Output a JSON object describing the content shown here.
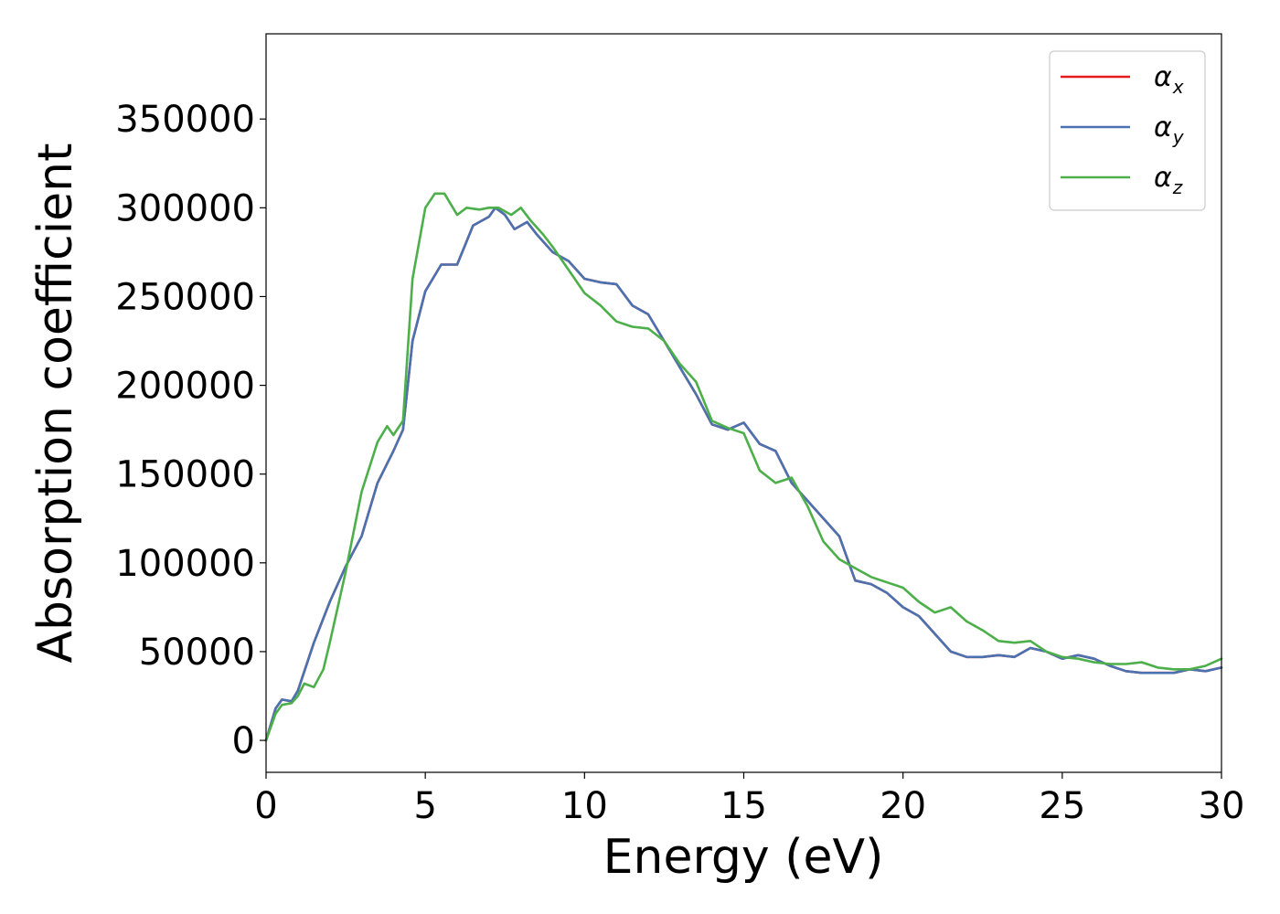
{
  "chart_data": {
    "type": "line",
    "title": "",
    "xlabel": "Energy (eV)",
    "ylabel": "Absorption coefficient",
    "xlim": [
      0,
      30
    ],
    "ylim": [
      -18000,
      398000
    ],
    "xticks": [
      0,
      5,
      10,
      15,
      20,
      25,
      30
    ],
    "yticks": [
      0,
      50000,
      100000,
      150000,
      200000,
      250000,
      300000,
      350000
    ],
    "grid": false,
    "legend_position": "top-right",
    "series": [
      {
        "name": "αx",
        "base": "α",
        "sub": "x",
        "color": "#e41a1c",
        "x": [
          0,
          0.3,
          0.5,
          0.8,
          1.0,
          1.5,
          2.0,
          2.5,
          3.0,
          3.5,
          4.0,
          4.3,
          4.6,
          5.0,
          5.5,
          6.0,
          6.5,
          7.0,
          7.2,
          7.5,
          7.8,
          8.2,
          8.5,
          9.0,
          9.5,
          10.0,
          10.5,
          11.0,
          11.5,
          12.0,
          12.5,
          13.0,
          13.5,
          14.0,
          14.5,
          15.0,
          15.5,
          16.0,
          16.5,
          17.0,
          17.5,
          18.0,
          18.5,
          19.0,
          19.5,
          20.0,
          20.5,
          21.0,
          21.5,
          22.0,
          22.5,
          23.0,
          23.5,
          24.0,
          24.5,
          25.0,
          25.5,
          26.0,
          26.5,
          27.0,
          27.5,
          28.0,
          28.5,
          29.0,
          29.5,
          30.0
        ],
        "y": [
          0,
          18000,
          23000,
          22000,
          28000,
          55000,
          78000,
          98000,
          115000,
          145000,
          163000,
          175000,
          225000,
          253000,
          268000,
          268000,
          290000,
          295000,
          300000,
          296000,
          288000,
          292000,
          285000,
          275000,
          270000,
          260000,
          258000,
          257000,
          245000,
          240000,
          225000,
          210000,
          195000,
          178000,
          175000,
          179000,
          167000,
          163000,
          145000,
          135000,
          125000,
          115000,
          90000,
          88000,
          83000,
          75000,
          70000,
          60000,
          50000,
          47000,
          47000,
          48000,
          47000,
          52000,
          50000,
          46000,
          48000,
          46000,
          42000,
          39000,
          38000,
          38000,
          38000,
          40000,
          39000,
          41000
        ]
      },
      {
        "name": "αy",
        "base": "α",
        "sub": "y",
        "color": "#4a72b0",
        "x": [
          0,
          0.3,
          0.5,
          0.8,
          1.0,
          1.5,
          2.0,
          2.5,
          3.0,
          3.5,
          4.0,
          4.3,
          4.6,
          5.0,
          5.5,
          6.0,
          6.5,
          7.0,
          7.2,
          7.5,
          7.8,
          8.2,
          8.5,
          9.0,
          9.5,
          10.0,
          10.5,
          11.0,
          11.5,
          12.0,
          12.5,
          13.0,
          13.5,
          14.0,
          14.5,
          15.0,
          15.5,
          16.0,
          16.5,
          17.0,
          17.5,
          18.0,
          18.5,
          19.0,
          19.5,
          20.0,
          20.5,
          21.0,
          21.5,
          22.0,
          22.5,
          23.0,
          23.5,
          24.0,
          24.5,
          25.0,
          25.5,
          26.0,
          26.5,
          27.0,
          27.5,
          28.0,
          28.5,
          29.0,
          29.5,
          30.0
        ],
        "y": [
          0,
          18000,
          23000,
          22000,
          28000,
          55000,
          78000,
          98000,
          115000,
          145000,
          163000,
          175000,
          225000,
          253000,
          268000,
          268000,
          290000,
          295000,
          300000,
          296000,
          288000,
          292000,
          285000,
          275000,
          270000,
          260000,
          258000,
          257000,
          245000,
          240000,
          225000,
          210000,
          195000,
          178000,
          175000,
          179000,
          167000,
          163000,
          145000,
          135000,
          125000,
          115000,
          90000,
          88000,
          83000,
          75000,
          70000,
          60000,
          50000,
          47000,
          47000,
          48000,
          47000,
          52000,
          50000,
          46000,
          48000,
          46000,
          42000,
          39000,
          38000,
          38000,
          38000,
          40000,
          39000,
          41000
        ]
      },
      {
        "name": "αz",
        "base": "α",
        "sub": "z",
        "color": "#4daf4a",
        "x": [
          0,
          0.3,
          0.5,
          0.8,
          1.0,
          1.2,
          1.5,
          1.8,
          2.0,
          2.5,
          3.0,
          3.5,
          3.8,
          4.0,
          4.3,
          4.6,
          5.0,
          5.3,
          5.6,
          6.0,
          6.3,
          6.7,
          7.0,
          7.3,
          7.7,
          8.0,
          8.3,
          8.7,
          9.0,
          9.5,
          10.0,
          10.5,
          11.0,
          11.5,
          12.0,
          12.5,
          13.0,
          13.5,
          14.0,
          14.5,
          15.0,
          15.5,
          16.0,
          16.5,
          17.0,
          17.5,
          18.0,
          18.5,
          19.0,
          19.5,
          20.0,
          20.5,
          21.0,
          21.5,
          22.0,
          22.5,
          23.0,
          23.5,
          24.0,
          24.5,
          25.0,
          25.5,
          26.0,
          26.5,
          27.0,
          27.5,
          28.0,
          28.5,
          29.0,
          29.5,
          30.0
        ],
        "y": [
          0,
          15000,
          20000,
          21000,
          25000,
          32000,
          30000,
          40000,
          55000,
          95000,
          140000,
          168000,
          177000,
          172000,
          180000,
          260000,
          300000,
          308000,
          308000,
          296000,
          300000,
          299000,
          300000,
          300000,
          296000,
          300000,
          293000,
          285000,
          278000,
          265000,
          252000,
          245000,
          236000,
          233000,
          232000,
          225000,
          212000,
          202000,
          180000,
          176000,
          173000,
          152000,
          145000,
          148000,
          132000,
          112000,
          102000,
          97000,
          92000,
          89000,
          86000,
          78000,
          72000,
          75000,
          67000,
          62000,
          56000,
          55000,
          56000,
          50000,
          47000,
          46000,
          44000,
          43000,
          43000,
          44000,
          41000,
          40000,
          40000,
          42000,
          46000
        ]
      }
    ]
  }
}
